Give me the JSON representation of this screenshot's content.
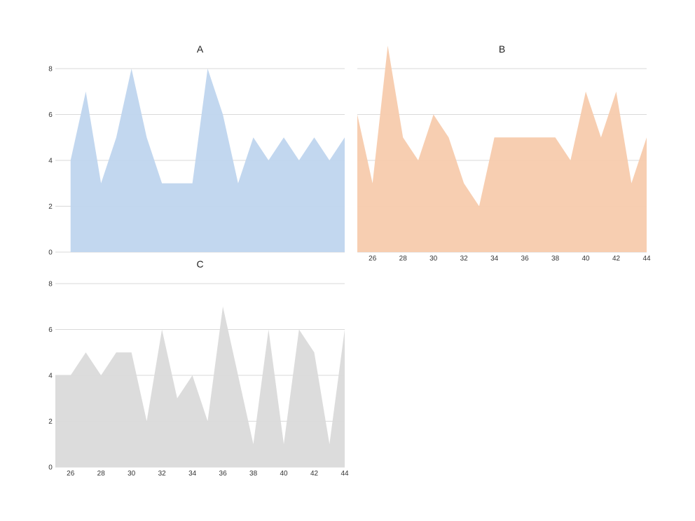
{
  "chart_data": [
    {
      "type": "area",
      "title": "A",
      "color": "#bfd5ee",
      "xlim": [
        24,
        43
      ],
      "ylim": [
        0,
        8
      ],
      "yticks": [
        0,
        2,
        4,
        6,
        8
      ],
      "xticks": [],
      "x": [
        25,
        26,
        27,
        28,
        29,
        30,
        31,
        32,
        33,
        34,
        35,
        36,
        37,
        38,
        39,
        40,
        41,
        42,
        43
      ],
      "values": [
        4,
        7,
        3,
        5,
        8,
        5,
        3,
        3,
        3,
        8,
        6,
        3,
        5,
        4,
        5,
        4,
        5,
        4,
        5
      ],
      "grid": true
    },
    {
      "type": "area",
      "title": "B",
      "color": "#f7cbad",
      "xlim": [
        25,
        44
      ],
      "ylim": [
        0,
        8
      ],
      "yticks": [],
      "xticks": [
        26,
        28,
        30,
        32,
        34,
        36,
        38,
        40,
        42,
        44
      ],
      "x": [
        25,
        26,
        27,
        28,
        29,
        30,
        31,
        32,
        33,
        34,
        35,
        36,
        37,
        38,
        39,
        40,
        41,
        42,
        43,
        44
      ],
      "values": [
        6,
        3,
        9,
        5,
        4,
        6,
        5,
        3,
        2,
        5,
        5,
        5,
        5,
        5,
        4,
        7,
        5,
        7,
        3,
        5
      ],
      "grid": true
    },
    {
      "type": "area",
      "title": "C",
      "color": "#dadada",
      "xlim": [
        25,
        44
      ],
      "ylim": [
        0,
        8
      ],
      "yticks": [
        0,
        2,
        4,
        6,
        8
      ],
      "xticks": [
        26,
        28,
        30,
        32,
        34,
        36,
        38,
        40,
        42,
        44
      ],
      "x": [
        25,
        26,
        27,
        28,
        29,
        30,
        31,
        32,
        33,
        34,
        35,
        36,
        37,
        38,
        39,
        40,
        41,
        42,
        43,
        44
      ],
      "values": [
        4,
        4,
        5,
        4,
        5,
        5,
        2,
        6,
        3,
        4,
        2,
        7,
        4,
        1,
        6,
        1,
        6,
        5,
        1,
        6
      ],
      "grid": true
    }
  ]
}
